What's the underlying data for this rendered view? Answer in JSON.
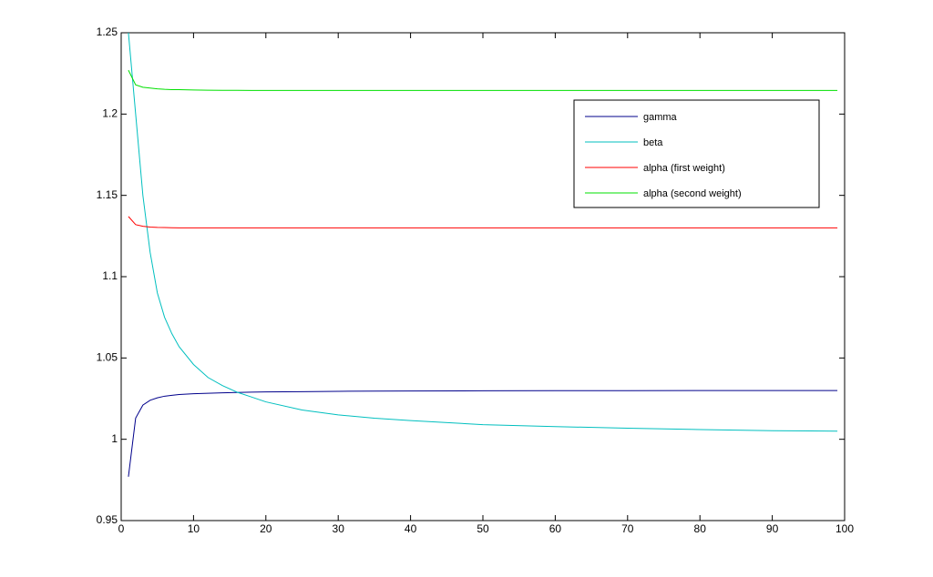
{
  "chart_data": {
    "type": "line",
    "x": [
      1,
      2,
      3,
      4,
      5,
      6,
      7,
      8,
      10,
      12,
      14,
      16,
      18,
      20,
      25,
      30,
      35,
      40,
      50,
      60,
      70,
      80,
      90,
      99
    ],
    "series": [
      {
        "name": "gamma",
        "color": "#00008b",
        "values": [
          0.977,
          1.013,
          1.021,
          1.024,
          1.0255,
          1.0265,
          1.027,
          1.0275,
          1.028,
          1.0283,
          1.0286,
          1.0288,
          1.029,
          1.0291,
          1.0293,
          1.0295,
          1.0296,
          1.0297,
          1.0298,
          1.0299,
          1.0299,
          1.03,
          1.03,
          1.03
        ]
      },
      {
        "name": "beta",
        "color": "#00bfbf",
        "values": [
          1.25,
          1.2,
          1.15,
          1.115,
          1.09,
          1.075,
          1.065,
          1.057,
          1.046,
          1.038,
          1.033,
          1.029,
          1.026,
          1.023,
          1.018,
          1.015,
          1.013,
          1.0115,
          1.009,
          1.0078,
          1.0068,
          1.006,
          1.0053,
          1.005
        ]
      },
      {
        "name": "alpha (first weight)",
        "color": "#ff0000",
        "values": [
          1.137,
          1.132,
          1.131,
          1.1305,
          1.1303,
          1.1302,
          1.1301,
          1.13,
          1.13,
          1.13,
          1.13,
          1.13,
          1.13,
          1.13,
          1.13,
          1.13,
          1.13,
          1.13,
          1.13,
          1.13,
          1.13,
          1.13,
          1.13,
          1.13
        ]
      },
      {
        "name": "alpha (second weight)",
        "color": "#00e000",
        "values": [
          1.227,
          1.218,
          1.2165,
          1.216,
          1.2155,
          1.2152,
          1.215,
          1.215,
          1.2148,
          1.2147,
          1.2146,
          1.2146,
          1.2145,
          1.2145,
          1.2145,
          1.2145,
          1.2145,
          1.2145,
          1.2145,
          1.2145,
          1.2145,
          1.2145,
          1.2145,
          1.2145
        ]
      }
    ],
    "xlim": [
      0,
      100
    ],
    "xticks": [
      0,
      10,
      20,
      30,
      40,
      50,
      60,
      70,
      80,
      90,
      100
    ],
    "ylim": [
      0.95,
      1.25
    ],
    "yticks": [
      0.95,
      1,
      1.05,
      1.1,
      1.15,
      1.2,
      1.25
    ],
    "grid": false,
    "legend_position": "upper right"
  }
}
